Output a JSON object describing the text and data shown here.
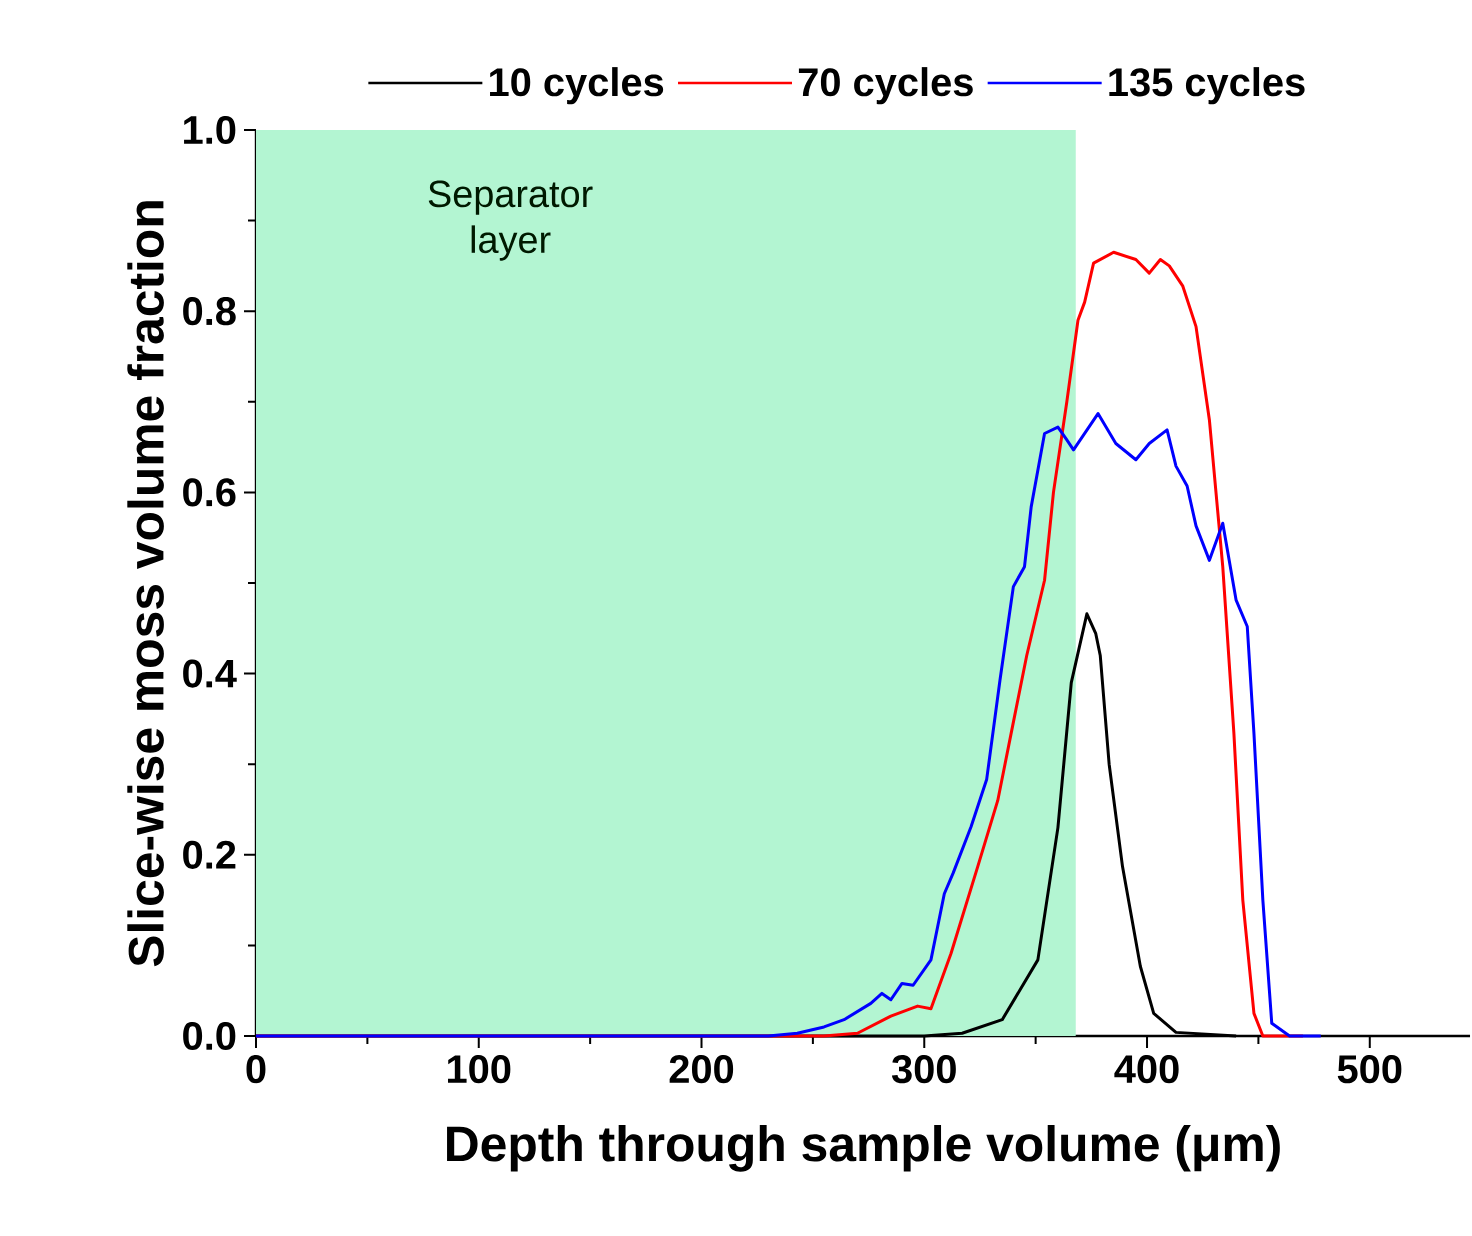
{
  "chart_data": {
    "type": "line",
    "xlabel": "Depth through sample volume (μm)",
    "ylabel": "Slice-wise moss volume fraction",
    "xlim": [
      0,
      545
    ],
    "ylim": [
      0,
      1
    ],
    "xticks": [
      0,
      100,
      200,
      300,
      400,
      500
    ],
    "yticks": [
      {
        "value": 0,
        "label": "0.0"
      },
      {
        "value": 0.2,
        "label": "0.2"
      },
      {
        "value": 0.4,
        "label": "0.4"
      },
      {
        "value": 0.6,
        "label": "0.6"
      },
      {
        "value": 0.8,
        "label": "0.8"
      },
      {
        "value": 1,
        "label": "1.0"
      }
    ],
    "legend": "top",
    "grid": false,
    "bands": [
      {
        "axis": "x",
        "from": 0,
        "to": 368,
        "label": "Separator layer",
        "color": "#b3f5d2"
      }
    ],
    "series": [
      {
        "name": "10 cycles",
        "color": "#000000",
        "x": [
          0,
          300,
          317,
          335,
          351,
          360,
          366,
          373,
          377,
          379,
          383,
          389,
          397,
          403,
          413,
          440
        ],
        "values": [
          0,
          0,
          0.003,
          0.018,
          0.084,
          0.23,
          0.39,
          0.466,
          0.444,
          0.42,
          0.3,
          0.187,
          0.077,
          0.025,
          0.004,
          0
        ]
      },
      {
        "name": "70 cycles",
        "color": "#ff0000",
        "x": [
          0,
          255,
          270,
          285,
          297,
          303,
          312,
          324,
          333,
          339,
          346,
          354,
          358,
          364,
          369,
          372,
          376,
          385,
          395,
          401,
          406,
          410,
          416,
          422,
          428,
          434,
          439,
          443,
          448,
          452,
          470
        ],
        "values": [
          0,
          0,
          0.003,
          0.022,
          0.033,
          0.03,
          0.091,
          0.187,
          0.26,
          0.334,
          0.42,
          0.503,
          0.6,
          0.7,
          0.79,
          0.81,
          0.853,
          0.865,
          0.857,
          0.842,
          0.857,
          0.85,
          0.828,
          0.783,
          0.68,
          0.518,
          0.334,
          0.15,
          0.025,
          0,
          0
        ]
      },
      {
        "name": "135 cycles",
        "color": "#0000ff",
        "x": [
          0,
          230,
          243,
          255,
          264,
          276,
          281,
          285,
          290,
          295,
          303,
          309,
          313,
          321,
          328,
          334,
          340,
          345,
          348,
          354,
          360,
          364,
          367,
          378,
          386,
          395,
          401,
          409,
          413,
          418,
          422,
          428,
          434,
          440,
          445,
          448,
          452,
          456,
          464,
          478
        ],
        "values": [
          0,
          0,
          0.003,
          0.01,
          0.018,
          0.036,
          0.047,
          0.04,
          0.058,
          0.056,
          0.084,
          0.157,
          0.18,
          0.231,
          0.283,
          0.393,
          0.496,
          0.518,
          0.584,
          0.665,
          0.672,
          0.658,
          0.647,
          0.687,
          0.654,
          0.636,
          0.654,
          0.669,
          0.629,
          0.607,
          0.563,
          0.525,
          0.566,
          0.481,
          0.452,
          0.334,
          0.15,
          0.014,
          0,
          0
        ]
      }
    ]
  }
}
